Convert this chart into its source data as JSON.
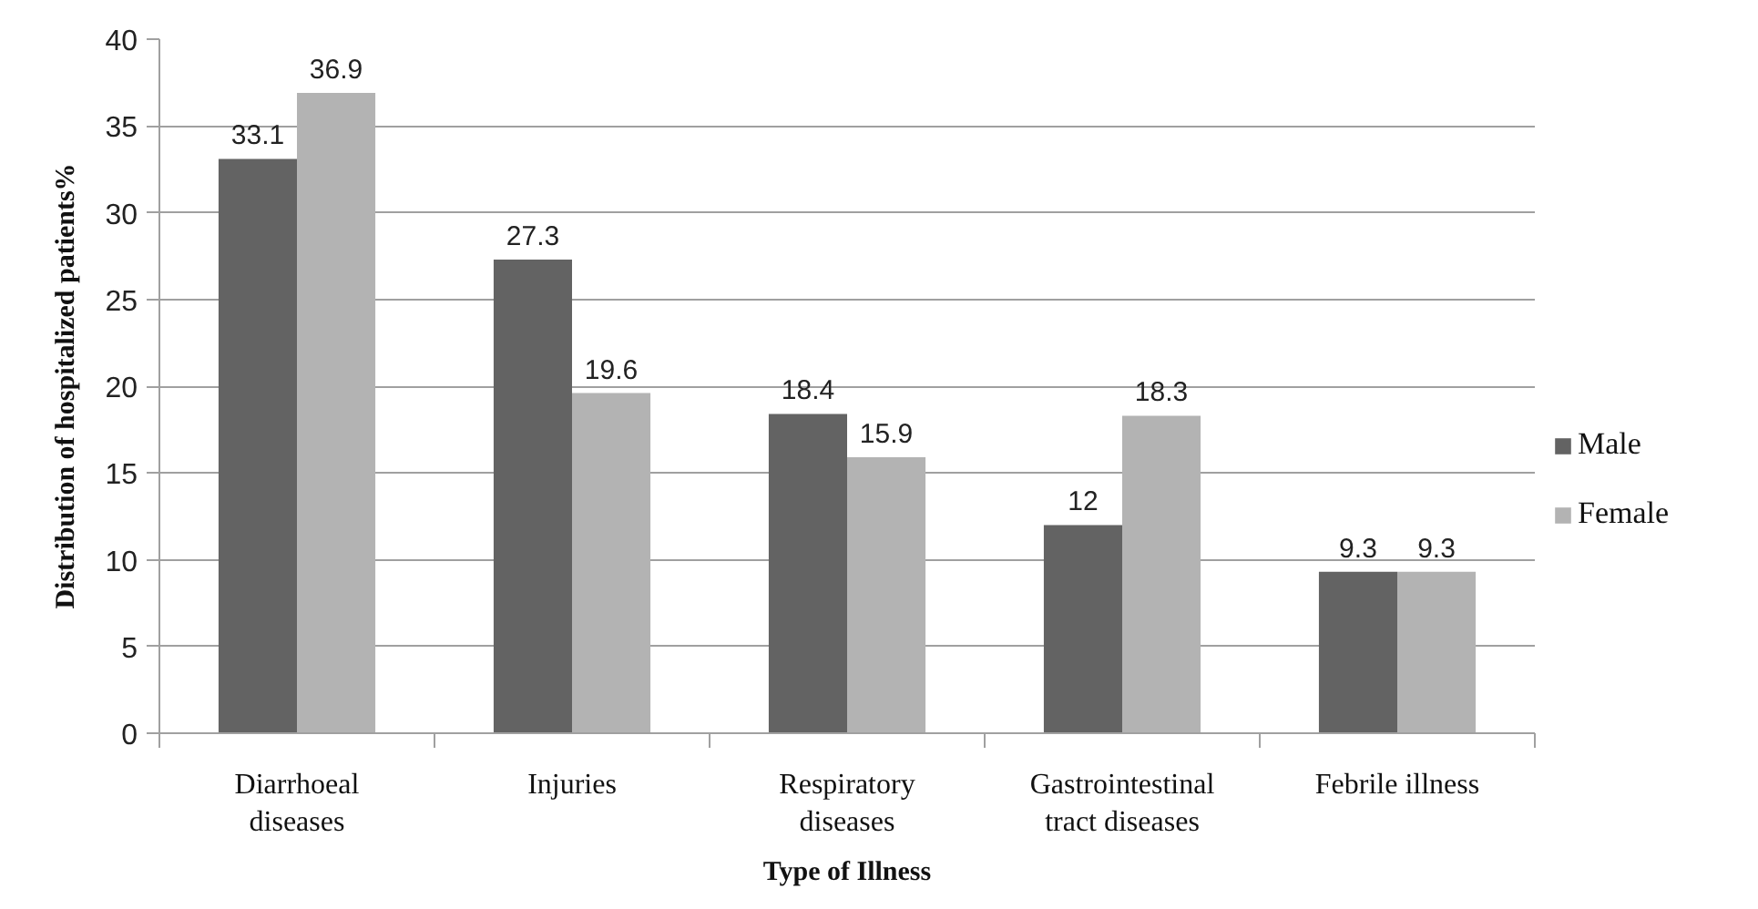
{
  "chart_data": {
    "type": "bar",
    "xlabel": "Type of Illness",
    "ylabel": "Distribution of hospitalized patients%",
    "categories": [
      "Diarrhoeal diseases",
      "Injuries",
      "Respiratory diseases",
      "Gastrointestinal tract diseases",
      "Febrile illness"
    ],
    "series": [
      {
        "name": "Male",
        "color": "#636363",
        "values": [
          33.1,
          27.3,
          18.4,
          12,
          9.3
        ]
      },
      {
        "name": "Female",
        "color": "#b3b3b3",
        "values": [
          36.9,
          19.6,
          15.9,
          18.3,
          9.3
        ]
      }
    ],
    "ylim": [
      0,
      40
    ],
    "yticks": [
      0,
      5,
      10,
      15,
      20,
      25,
      30,
      35,
      40
    ],
    "grid": "y",
    "legend": "right",
    "data_labels": true
  }
}
